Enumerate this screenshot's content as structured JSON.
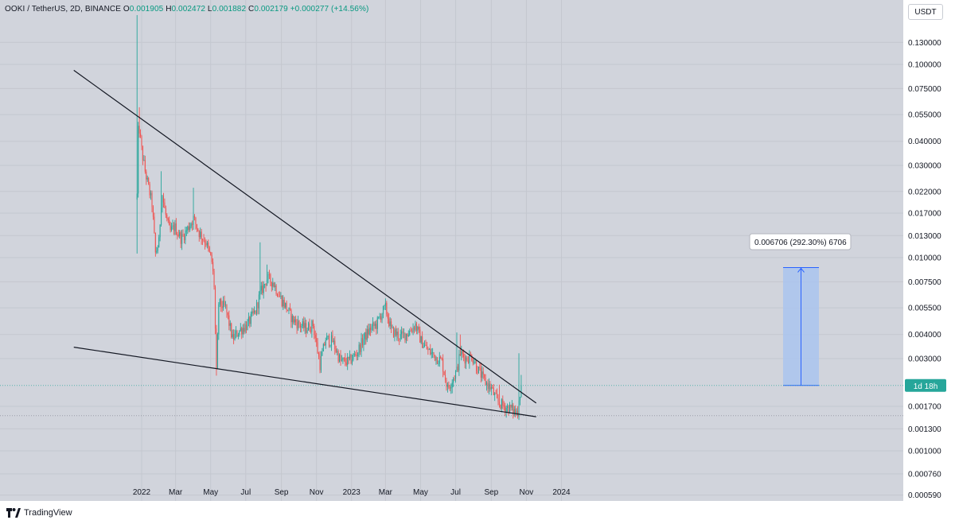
{
  "header": {
    "symbol": "OOKI / TetherUS, 2D, BINANCE",
    "o_label": "O",
    "o_value": "0.001905",
    "h_label": "H",
    "h_value": "0.002472",
    "l_label": "L",
    "l_value": "0.001882",
    "c_label": "C",
    "c_value": "0.002179",
    "change": "+0.000277 (+14.56%)"
  },
  "currency_button": "USDT",
  "countdown_label": "1d 18h",
  "measure_label": "0.006706 (292.30%) 6706",
  "brand": "TradingView",
  "colors": {
    "up": "#26a69a",
    "down": "#ef5350",
    "background": "#d1d4dc",
    "measure_fill": "#aac4ee",
    "measure_line": "#2962ff",
    "trendline": "#131722"
  },
  "chart_data": {
    "type": "candlestick",
    "price_scale": "log",
    "ylim": [
      0.00049,
      0.18
    ],
    "y_ticks": [
      "0.130000",
      "0.100000",
      "0.075000",
      "0.055000",
      "0.040000",
      "0.030000",
      "0.022000",
      "0.017000",
      "0.013000",
      "0.010000",
      "0.007500",
      "0.005500",
      "0.004000",
      "0.003000",
      "0.001700",
      "0.001300",
      "0.001000",
      "0.000760",
      "0.000590"
    ],
    "x_ticks": [
      "2022",
      "Mar",
      "May",
      "Jul",
      "Sep",
      "Nov",
      "2023",
      "Mar",
      "May",
      "Jul",
      "Sep",
      "Nov",
      "2024"
    ],
    "last_price": 0.002179,
    "price_range_measure": {
      "from": 0.002179,
      "to": 0.008885,
      "delta": "0.006706",
      "percent": "292.30%"
    },
    "trendlines": [
      {
        "name": "upper-resistance",
        "points": [
          [
            "2021-11-14",
            0.066
          ],
          [
            "2023-10-26",
            0.00198
          ]
        ]
      },
      {
        "name": "lower-support",
        "points": [
          [
            "2021-11-14",
            0.0032
          ],
          [
            "2023-11-06",
            0.00152
          ]
        ]
      }
    ],
    "series": [
      {
        "name": "OOKI / TetherUS",
        "anchors": [
          [
            "2021-12-24",
            0.021
          ],
          [
            "2021-12-26",
            0.045
          ],
          [
            "2021-12-28",
            0.046
          ],
          [
            "2022-01-01",
            0.036
          ],
          [
            "2022-01-07",
            0.028
          ],
          [
            "2022-01-13",
            0.023
          ],
          [
            "2022-01-19",
            0.019
          ],
          [
            "2022-01-25",
            0.0105
          ],
          [
            "2022-01-31",
            0.012
          ],
          [
            "2022-02-05",
            0.022
          ],
          [
            "2022-02-11",
            0.017
          ],
          [
            "2022-02-19",
            0.0135
          ],
          [
            "2022-02-27",
            0.0145
          ],
          [
            "2022-03-11",
            0.0125
          ],
          [
            "2022-03-21",
            0.014
          ],
          [
            "2022-04-01",
            0.016
          ],
          [
            "2022-04-11",
            0.0135
          ],
          [
            "2022-04-23",
            0.012
          ],
          [
            "2022-05-03",
            0.0095
          ],
          [
            "2022-05-07",
            0.0072
          ],
          [
            "2022-05-11",
            0.0025
          ],
          [
            "2022-05-15",
            0.0058
          ],
          [
            "2022-05-27",
            0.0055
          ],
          [
            "2022-06-08",
            0.0038
          ],
          [
            "2022-06-20",
            0.0042
          ],
          [
            "2022-07-04",
            0.0045
          ],
          [
            "2022-07-18",
            0.0053
          ],
          [
            "2022-07-26",
            0.0065
          ],
          [
            "2022-08-07",
            0.0078
          ],
          [
            "2022-08-17",
            0.0075
          ],
          [
            "2022-08-29",
            0.0063
          ],
          [
            "2022-09-10",
            0.0055
          ],
          [
            "2022-09-20",
            0.0048
          ],
          [
            "2022-10-02",
            0.0045
          ],
          [
            "2022-10-14",
            0.0043
          ],
          [
            "2022-10-26",
            0.0045
          ],
          [
            "2022-11-07",
            0.0028
          ],
          [
            "2022-11-17",
            0.0038
          ],
          [
            "2022-11-29",
            0.0037
          ],
          [
            "2022-12-13",
            0.0029
          ],
          [
            "2022-12-27",
            0.0029
          ],
          [
            "2023-01-10",
            0.0032
          ],
          [
            "2023-01-22",
            0.0038
          ],
          [
            "2023-02-03",
            0.0043
          ],
          [
            "2023-02-13",
            0.0045
          ],
          [
            "2023-02-23",
            0.0052
          ],
          [
            "2023-03-01",
            0.0055
          ],
          [
            "2023-03-11",
            0.0042
          ],
          [
            "2023-03-27",
            0.0039
          ],
          [
            "2023-04-10",
            0.0041
          ],
          [
            "2023-04-22",
            0.0045
          ],
          [
            "2023-05-02",
            0.0037
          ],
          [
            "2023-05-14",
            0.0033
          ],
          [
            "2023-05-26",
            0.0031
          ],
          [
            "2023-06-07",
            0.0029
          ],
          [
            "2023-06-17",
            0.0021
          ],
          [
            "2023-06-27",
            0.0024
          ],
          [
            "2023-07-03",
            0.0026
          ],
          [
            "2023-07-09",
            0.0032
          ],
          [
            "2023-07-19",
            0.003
          ],
          [
            "2023-07-29",
            0.0031
          ],
          [
            "2023-08-10",
            0.0026
          ],
          [
            "2023-08-20",
            0.0023
          ],
          [
            "2023-09-01",
            0.0021
          ],
          [
            "2023-09-11",
            0.0018
          ],
          [
            "2023-09-23",
            0.0017
          ],
          [
            "2023-10-05",
            0.00165
          ],
          [
            "2023-10-15",
            0.00158
          ],
          [
            "2023-10-17",
            0.0016
          ],
          [
            "2023-10-19",
            0.0019
          ],
          [
            "2023-10-21",
            0.0019
          ],
          [
            "2023-10-23",
            0.0021
          ]
        ]
      }
    ]
  }
}
